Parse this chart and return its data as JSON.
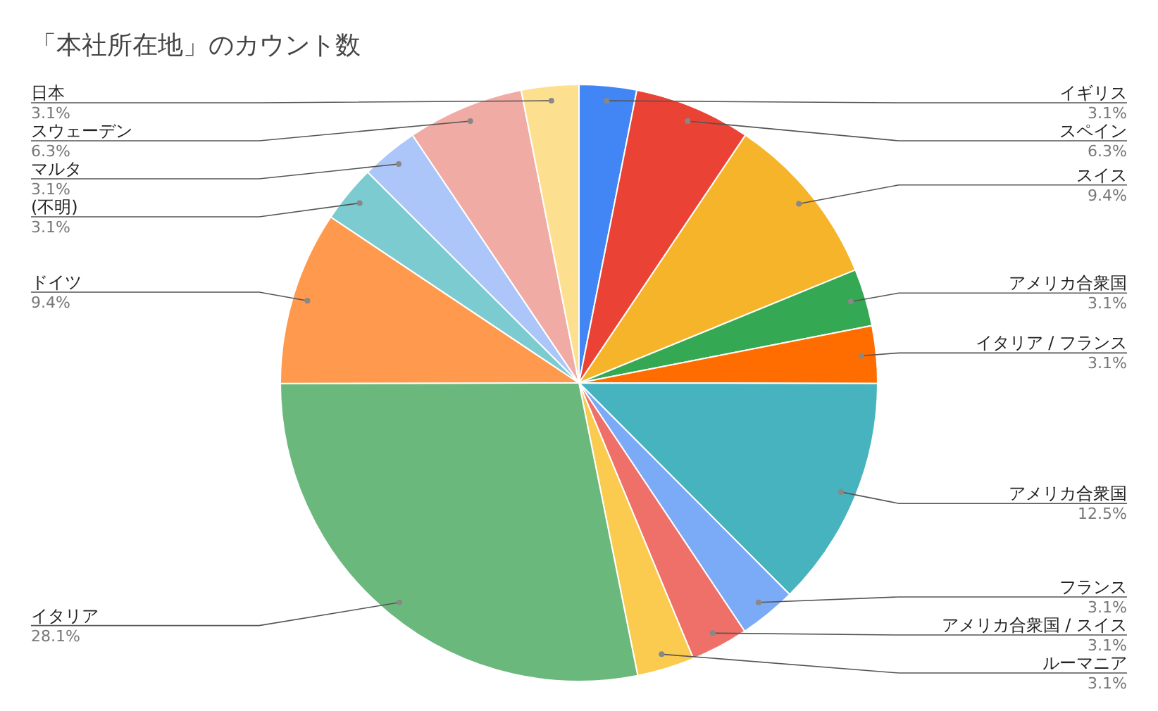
{
  "chart_data": {
    "type": "pie",
    "title": "「本社所在地」のカウント数",
    "categories": [
      "イギリス",
      "スペイン",
      "スイス",
      "アメリカ合衆国",
      "イタリア / フランス",
      "アメリカ合衆国",
      "フランス",
      "アメリカ合衆国 / スイス",
      "ルーマニア",
      "イタリア",
      "ドイツ",
      "(不明)",
      "マルタ",
      "スウェーデン",
      "日本"
    ],
    "values": [
      3.1,
      6.3,
      9.4,
      3.1,
      3.1,
      12.5,
      3.1,
      3.1,
      3.1,
      28.1,
      9.4,
      3.1,
      3.1,
      6.3,
      3.1
    ],
    "value_labels": [
      "3.1%",
      "6.3%",
      "9.4%",
      "3.1%",
      "3.1%",
      "12.5%",
      "3.1%",
      "3.1%",
      "3.1%",
      "28.1%",
      "9.4%",
      "3.1%",
      "3.1%",
      "6.3%",
      "3.1%"
    ],
    "colors": [
      "#4285f4",
      "#ea4335",
      "#f6b42a",
      "#34a853",
      "#ff6d01",
      "#46b3bf",
      "#7baaf7",
      "#ee7068",
      "#fbcb50",
      "#6bb87d",
      "#ff994d",
      "#7ccbd0",
      "#acc6fa",
      "#f0aba4",
      "#fde08f"
    ]
  }
}
